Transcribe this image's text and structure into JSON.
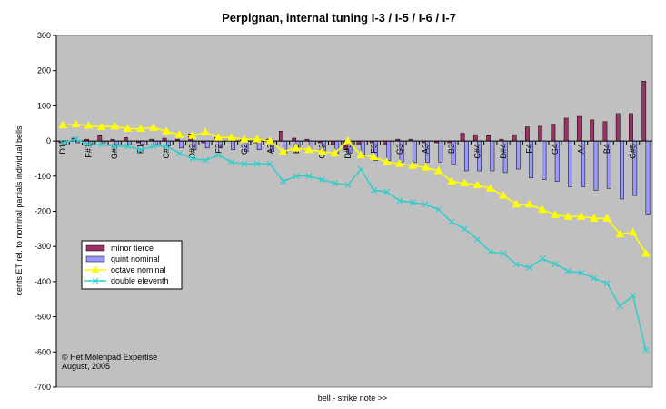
{
  "chart_data": {
    "type": "bar-line",
    "title": "Perpignan, internal tuning I-3 / I-5 / I-6 / I-7",
    "x_label": "bell - strike note >>",
    "y_label": "cents ET rel. to nominal partials individual bells",
    "annotation": [
      "© Het Molenpad Expertise",
      "August, 2005"
    ],
    "categories": [
      "D1",
      null,
      "F#1",
      null,
      "G#1",
      null,
      "B1",
      null,
      "C#2",
      null,
      "D#2",
      null,
      "F2",
      null,
      "G2",
      null,
      "A2",
      null,
      "B2",
      null,
      "C#3",
      null,
      "D#3",
      null,
      "F3",
      null,
      "G3",
      null,
      "A3",
      null,
      "B3",
      null,
      "C#4",
      null,
      "D#4",
      null,
      "F4",
      null,
      "G4",
      null,
      "A4",
      null,
      "B4",
      null,
      "C#5",
      null
    ],
    "ylim": [
      -700,
      300
    ],
    "yticks": [
      -700,
      -600,
      -500,
      -400,
      -300,
      -200,
      -100,
      0,
      100,
      200,
      300
    ],
    "legend": "lower left",
    "series": [
      {
        "name": "minor tierce",
        "kind": "bar",
        "color": "#993366",
        "values": [
          -5,
          8,
          5,
          15,
          5,
          10,
          -5,
          5,
          8,
          5,
          20,
          -5,
          10,
          5,
          5,
          -5,
          5,
          28,
          8,
          5,
          -5,
          -10,
          -25,
          -10,
          -5,
          -10,
          5,
          5,
          -5,
          -5,
          -5,
          22,
          18,
          15,
          5,
          18,
          40,
          42,
          48,
          65,
          70,
          60,
          55,
          78,
          78,
          170
        ]
      },
      {
        "name": "quint nominal",
        "kind": "bar",
        "color": "#9999ff",
        "values": [
          -10,
          -5,
          -8,
          -5,
          -10,
          -10,
          -10,
          -10,
          -15,
          -20,
          -25,
          -20,
          -20,
          -25,
          -30,
          -25,
          -30,
          -35,
          -20,
          -25,
          -30,
          -35,
          -35,
          -45,
          -55,
          -55,
          -60,
          -60,
          -60,
          -60,
          -65,
          -85,
          -85,
          -85,
          -90,
          -80,
          -105,
          -110,
          -115,
          -130,
          -130,
          -140,
          -135,
          -165,
          -155,
          -210
        ]
      },
      {
        "name": "octave nominal",
        "kind": "line",
        "marker": "triangle",
        "color": "#ffff00",
        "values": [
          45,
          48,
          44,
          40,
          42,
          35,
          35,
          38,
          28,
          18,
          15,
          25,
          10,
          10,
          5,
          5,
          0,
          -30,
          -20,
          -25,
          -30,
          -35,
          0,
          -40,
          -45,
          -60,
          -65,
          -70,
          -75,
          -85,
          -115,
          -120,
          -125,
          -135,
          -155,
          -180,
          -180,
          -195,
          -210,
          -215,
          -215,
          -220,
          -220,
          -265,
          -260,
          -320
        ]
      },
      {
        "name": "double eleventh",
        "kind": "line",
        "marker": "x",
        "color": "#33cccc",
        "values": [
          -5,
          5,
          -10,
          -10,
          -15,
          -15,
          -25,
          -15,
          -15,
          -35,
          -50,
          -55,
          -40,
          -60,
          -65,
          -65,
          -65,
          -115,
          -100,
          -100,
          -110,
          -120,
          -125,
          -80,
          -140,
          -145,
          -170,
          -175,
          -180,
          -195,
          -230,
          -250,
          -280,
          -315,
          -320,
          -350,
          -360,
          -335,
          -350,
          -370,
          -375,
          -390,
          -405,
          -470,
          -440,
          -595
        ]
      }
    ]
  }
}
